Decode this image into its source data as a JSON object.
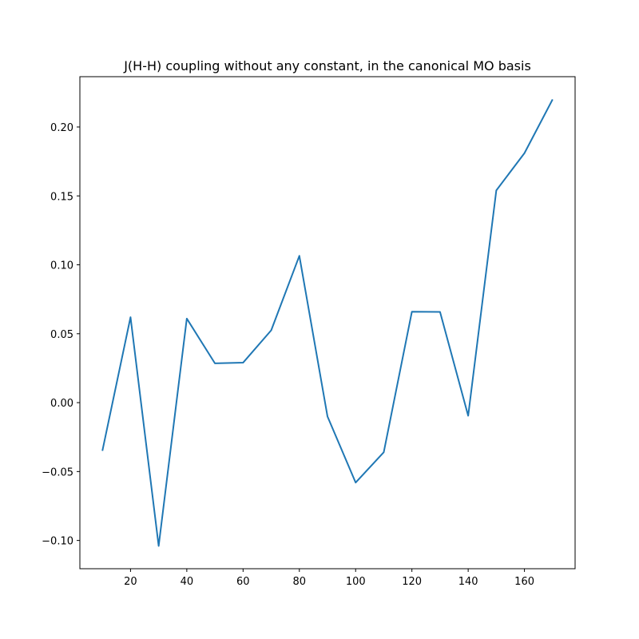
{
  "chart_data": {
    "type": "line",
    "title": "J(H-H) coupling without any constant, in the canonical MO basis",
    "xlabel": "",
    "ylabel": "",
    "xlim": [
      2,
      178
    ],
    "ylim": [
      -0.1205,
      0.2365
    ],
    "grid": false,
    "x_ticks": [
      20,
      40,
      60,
      80,
      100,
      120,
      140,
      160
    ],
    "y_ticks": [
      -0.1,
      -0.05,
      0.0,
      0.05,
      0.1,
      0.15,
      0.2
    ],
    "y_tick_labels": [
      "−0.10",
      "−0.05",
      "0.00",
      "0.05",
      "0.10",
      "0.15",
      "0.20"
    ],
    "line_color": "#1f77b4",
    "series": [
      {
        "x": [
          10,
          20,
          30,
          40,
          50,
          60,
          70,
          80,
          90,
          100,
          110,
          120,
          130,
          140,
          150,
          160,
          170
        ],
        "values": [
          -0.035,
          0.062,
          -0.104,
          0.061,
          0.0285,
          0.029,
          0.0525,
          0.1065,
          -0.01,
          -0.058,
          -0.036,
          0.066,
          0.0658,
          -0.0095,
          0.154,
          0.181,
          0.22
        ]
      }
    ]
  }
}
